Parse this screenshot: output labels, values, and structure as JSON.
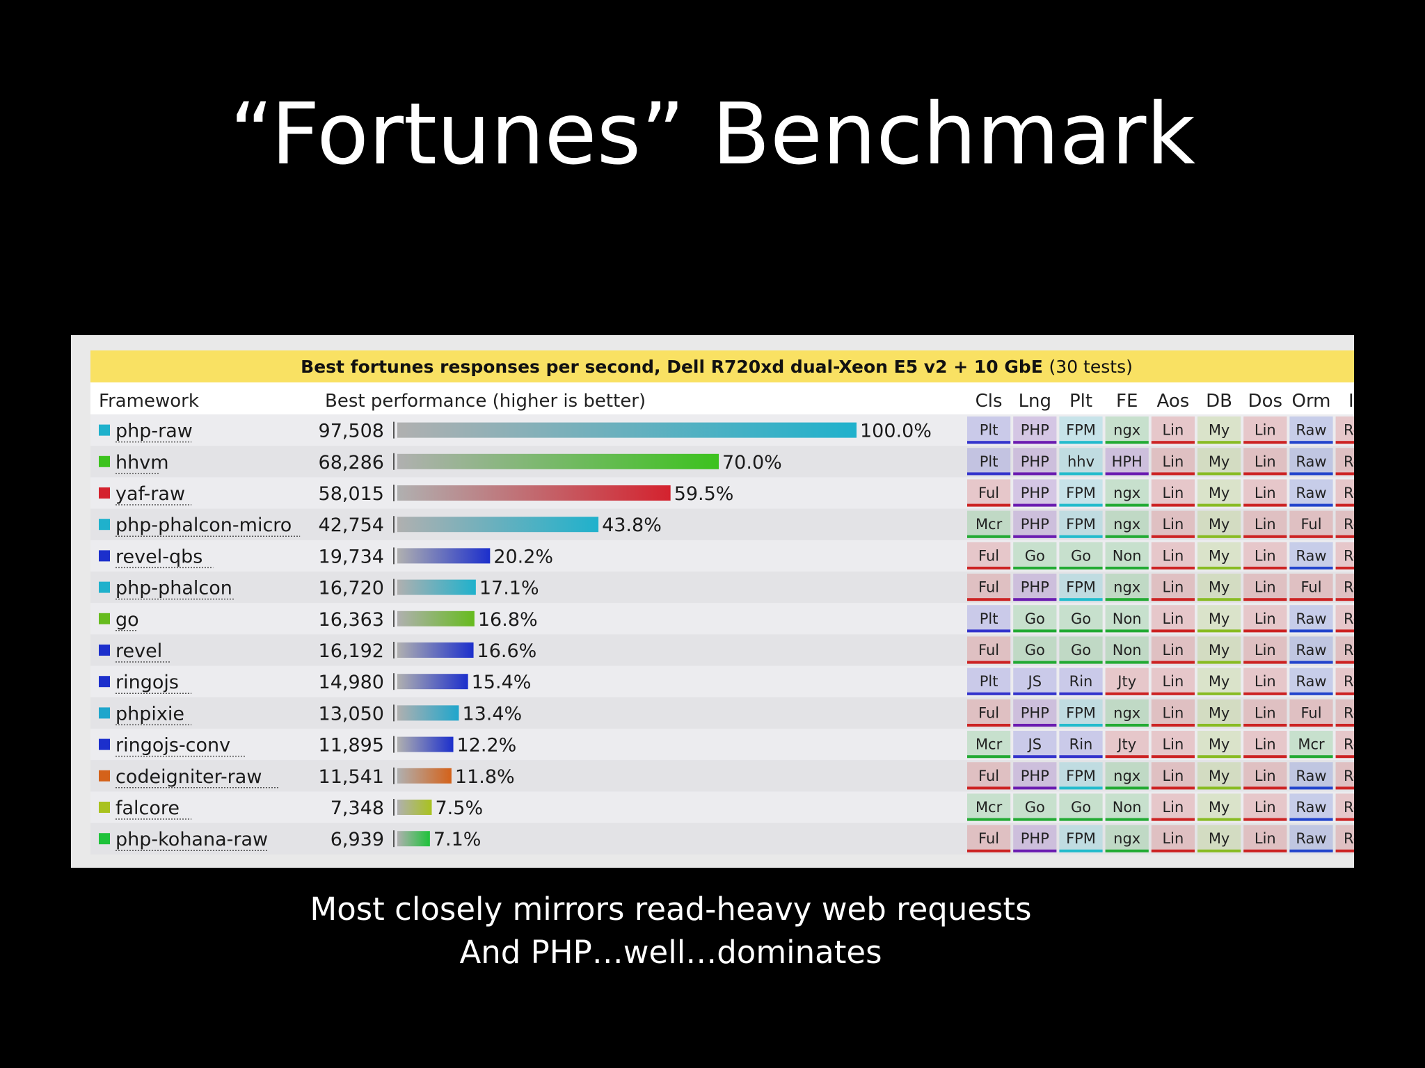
{
  "slide": {
    "title": "“Fortunes” Benchmark",
    "caption_lines": [
      "Most closely mirrors read-heavy web requests",
      "And PHP…well…dominates"
    ]
  },
  "chart_data": {
    "type": "bar",
    "title": "Best fortunes responses per second, Dell R720xd dual-Xeon E5 v2 + 10 GbE",
    "subtitle": "(30 tests)",
    "columns": {
      "framework": "Framework",
      "performance": "Best performance (higher is better)",
      "attributes": [
        "Cls",
        "Lng",
        "Plt",
        "FE",
        "Aos",
        "DB",
        "Dos",
        "Orm",
        "IA"
      ]
    },
    "attribute_colors": {
      "Plt": "#3333cc",
      "Ful": "#cc2222",
      "Mcr": "#22aa33",
      "PHP": "#6a1bb0",
      "Go": "#22aa33",
      "JS": "#3333cc",
      "FPM": "#22bbcc",
      "hhv": "#22bbcc",
      "Rin": "#3333cc",
      "HPH": "#6a1bb0",
      "ngx": "#22aa33",
      "Non": "#22aa33",
      "Jty": "#cc2222",
      "Lin": "#cc2222",
      "My": "#88bb22",
      "Raw": "#2244cc",
      "Rea": "#cc2222"
    },
    "series": [
      {
        "name": "php-raw",
        "value": 97508,
        "value_label": "97,508",
        "pct": 100.0,
        "pct_label": "100.0%",
        "color": "#1fb1cc",
        "attrs": [
          "Plt",
          "PHP",
          "FPM",
          "ngx",
          "Lin",
          "My",
          "Lin",
          "Raw",
          "Rea"
        ]
      },
      {
        "name": "hhvm",
        "value": 68286,
        "value_label": "68,286",
        "pct": 70.0,
        "pct_label": "70.0%",
        "color": "#3cc21e",
        "attrs": [
          "Plt",
          "PHP",
          "hhv",
          "HPH",
          "Lin",
          "My",
          "Lin",
          "Raw",
          "Rea"
        ]
      },
      {
        "name": "yaf-raw",
        "value": 58015,
        "value_label": "58,015",
        "pct": 59.5,
        "pct_label": "59.5%",
        "color": "#d4222e",
        "attrs": [
          "Ful",
          "PHP",
          "FPM",
          "ngx",
          "Lin",
          "My",
          "Lin",
          "Raw",
          "Rea"
        ]
      },
      {
        "name": "php-phalcon-micro",
        "value": 42754,
        "value_label": "42,754",
        "pct": 43.8,
        "pct_label": "43.8%",
        "color": "#1fb1cc",
        "attrs": [
          "Mcr",
          "PHP",
          "FPM",
          "ngx",
          "Lin",
          "My",
          "Lin",
          "Ful",
          "Rea"
        ]
      },
      {
        "name": "revel-qbs",
        "value": 19734,
        "value_label": "19,734",
        "pct": 20.2,
        "pct_label": "20.2%",
        "color": "#1c2fcc",
        "attrs": [
          "Ful",
          "Go",
          "Go",
          "Non",
          "Lin",
          "My",
          "Lin",
          "Raw",
          "Rea"
        ]
      },
      {
        "name": "php-phalcon",
        "value": 16720,
        "value_label": "16,720",
        "pct": 17.1,
        "pct_label": "17.1%",
        "color": "#1fb1cc",
        "attrs": [
          "Ful",
          "PHP",
          "FPM",
          "ngx",
          "Lin",
          "My",
          "Lin",
          "Ful",
          "Rea"
        ]
      },
      {
        "name": "go",
        "value": 16363,
        "value_label": "16,363",
        "pct": 16.8,
        "pct_label": "16.8%",
        "color": "#66bb1e",
        "attrs": [
          "Plt",
          "Go",
          "Go",
          "Non",
          "Lin",
          "My",
          "Lin",
          "Raw",
          "Rea"
        ]
      },
      {
        "name": "revel",
        "value": 16192,
        "value_label": "16,192",
        "pct": 16.6,
        "pct_label": "16.6%",
        "color": "#1c2fcc",
        "attrs": [
          "Ful",
          "Go",
          "Go",
          "Non",
          "Lin",
          "My",
          "Lin",
          "Raw",
          "Rea"
        ]
      },
      {
        "name": "ringojs",
        "value": 14980,
        "value_label": "14,980",
        "pct": 15.4,
        "pct_label": "15.4%",
        "color": "#1c2fcc",
        "attrs": [
          "Plt",
          "JS",
          "Rin",
          "Jty",
          "Lin",
          "My",
          "Lin",
          "Raw",
          "Rea"
        ]
      },
      {
        "name": "phpixie",
        "value": 13050,
        "value_label": "13,050",
        "pct": 13.4,
        "pct_label": "13.4%",
        "color": "#1fa6cc",
        "attrs": [
          "Ful",
          "PHP",
          "FPM",
          "ngx",
          "Lin",
          "My",
          "Lin",
          "Ful",
          "Rea"
        ]
      },
      {
        "name": "ringojs-conv",
        "value": 11895,
        "value_label": "11,895",
        "pct": 12.2,
        "pct_label": "12.2%",
        "color": "#1c2fcc",
        "attrs": [
          "Mcr",
          "JS",
          "Rin",
          "Jty",
          "Lin",
          "My",
          "Lin",
          "Mcr",
          "Rea"
        ]
      },
      {
        "name": "codeigniter-raw",
        "value": 11541,
        "value_label": "11,541",
        "pct": 11.8,
        "pct_label": "11.8%",
        "color": "#d4621a",
        "attrs": [
          "Ful",
          "PHP",
          "FPM",
          "ngx",
          "Lin",
          "My",
          "Lin",
          "Raw",
          "Rea"
        ]
      },
      {
        "name": "falcore",
        "value": 7348,
        "value_label": "7,348",
        "pct": 7.5,
        "pct_label": "7.5%",
        "color": "#a9c21e",
        "attrs": [
          "Mcr",
          "Go",
          "Go",
          "Non",
          "Lin",
          "My",
          "Lin",
          "Raw",
          "Rea"
        ]
      },
      {
        "name": "php-kohana-raw",
        "value": 6939,
        "value_label": "6,939",
        "pct": 7.1,
        "pct_label": "7.1%",
        "color": "#1ec23a",
        "attrs": [
          "Ful",
          "PHP",
          "FPM",
          "ngx",
          "Lin",
          "My",
          "Lin",
          "Raw",
          "Rea"
        ]
      }
    ],
    "xlim": [
      0,
      100
    ]
  }
}
